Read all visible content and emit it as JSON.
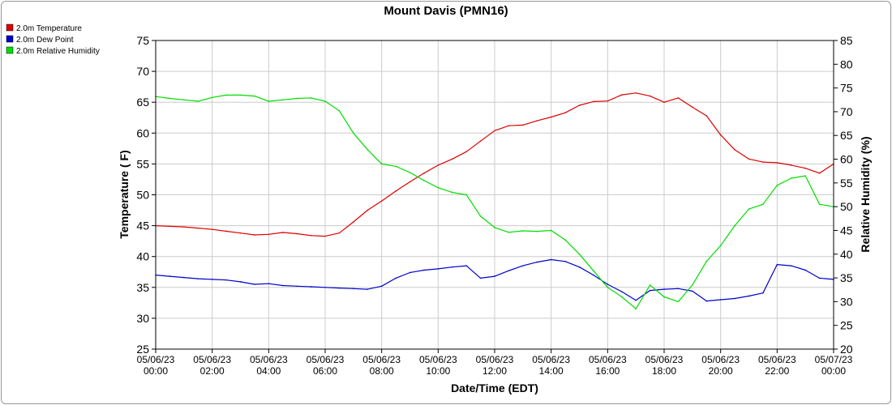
{
  "chart_data": {
    "type": "line",
    "title": "Mount Davis (PMN16)",
    "xlabel": "Date/Time (EDT)",
    "ylabel": "Temperature ( F)",
    "y2label": "Relative Humidity (%)",
    "xlim": [
      0,
      24
    ],
    "ylim": [
      25,
      75
    ],
    "y2lim": [
      20,
      85
    ],
    "yticks": [
      "25",
      "30",
      "35",
      "40",
      "45",
      "50",
      "55",
      "60",
      "65",
      "70",
      "75"
    ],
    "y2ticks": [
      "20",
      "25",
      "30",
      "35",
      "40",
      "45",
      "50",
      "55",
      "60",
      "65",
      "70",
      "75",
      "80",
      "85"
    ],
    "xticks": [
      {
        "date": "05/06/23",
        "time": "00:00"
      },
      {
        "date": "05/06/23",
        "time": "02:00"
      },
      {
        "date": "05/06/23",
        "time": "04:00"
      },
      {
        "date": "05/06/23",
        "time": "06:00"
      },
      {
        "date": "05/06/23",
        "time": "08:00"
      },
      {
        "date": "05/06/23",
        "time": "10:00"
      },
      {
        "date": "05/06/23",
        "time": "12:00"
      },
      {
        "date": "05/06/23",
        "time": "14:00"
      },
      {
        "date": "05/06/23",
        "time": "16:00"
      },
      {
        "date": "05/06/23",
        "time": "18:00"
      },
      {
        "date": "05/06/23",
        "time": "20:00"
      },
      {
        "date": "05/06/23",
        "time": "22:00"
      },
      {
        "date": "05/07/23",
        "time": "00:00"
      }
    ],
    "grid": true,
    "legend_position": "top-left",
    "series": [
      {
        "name": "2.0m Temperature",
        "color": "#dd0000",
        "axis": "left",
        "x": [
          0,
          0.5,
          1,
          1.5,
          2,
          2.5,
          3,
          3.5,
          4,
          4.5,
          5,
          5.5,
          6,
          6.5,
          7,
          7.5,
          8,
          8.5,
          9,
          9.5,
          10,
          10.5,
          11,
          11.5,
          12,
          12.5,
          13,
          13.5,
          14,
          14.5,
          15,
          15.5,
          16,
          16.5,
          17,
          17.5,
          18,
          18.5,
          19,
          19.5,
          20,
          20.5,
          21,
          21.5,
          22,
          22.5,
          23,
          23.5,
          24
        ],
        "values": [
          45.0,
          44.9,
          44.8,
          44.6,
          44.4,
          44.1,
          43.8,
          43.5,
          43.6,
          43.9,
          43.7,
          43.4,
          43.3,
          43.8,
          45.6,
          47.5,
          49.0,
          50.6,
          52.1,
          53.5,
          54.8,
          55.8,
          57.0,
          58.7,
          60.4,
          61.2,
          61.3,
          62.0,
          62.6,
          63.3,
          64.5,
          65.1,
          65.2,
          66.2,
          66.5,
          66.0,
          65.0,
          65.7,
          64.2,
          62.8,
          59.7,
          57.3,
          55.8,
          55.3,
          55.2,
          54.8,
          54.3,
          53.5,
          55.0
        ]
      },
      {
        "name": "2.0m Dew Point",
        "color": "#0000cc",
        "axis": "left",
        "x": [
          0,
          0.5,
          1,
          1.5,
          2,
          2.5,
          3,
          3.5,
          4,
          4.5,
          5,
          5.5,
          6,
          6.5,
          7,
          7.5,
          8,
          8.5,
          9,
          9.5,
          10,
          10.5,
          11,
          11.5,
          12,
          12.5,
          13,
          13.5,
          14,
          14.5,
          15,
          15.5,
          16,
          16.5,
          17,
          17.5,
          18,
          18.5,
          19,
          19.5,
          20,
          20.5,
          21,
          21.5,
          22,
          22.5,
          23,
          23.5,
          24
        ],
        "values": [
          37.0,
          36.8,
          36.6,
          36.4,
          36.3,
          36.2,
          35.9,
          35.5,
          35.6,
          35.3,
          35.2,
          35.1,
          35.0,
          34.9,
          34.8,
          34.7,
          35.2,
          36.5,
          37.4,
          37.8,
          38.0,
          38.3,
          38.5,
          36.5,
          36.8,
          37.7,
          38.5,
          39.1,
          39.5,
          39.2,
          38.3,
          37.0,
          35.5,
          34.3,
          32.9,
          34.5,
          34.7,
          34.8,
          34.4,
          32.8,
          33.0,
          33.2,
          33.6,
          34.1,
          38.7,
          38.5,
          37.8,
          36.5,
          36.3
        ]
      },
      {
        "name": "2.0m Relative Humidity",
        "color": "#00dd00",
        "axis": "right",
        "x": [
          0,
          0.5,
          1,
          1.5,
          2,
          2.5,
          3,
          3.5,
          4,
          4.5,
          5,
          5.5,
          6,
          6.5,
          7,
          7.5,
          8,
          8.5,
          9,
          9.5,
          10,
          10.5,
          11,
          11.5,
          12,
          12.5,
          13,
          13.5,
          14,
          14.5,
          15,
          15.5,
          16,
          16.5,
          17,
          17.5,
          18,
          18.5,
          19,
          19.5,
          20,
          20.5,
          21,
          21.5,
          22,
          22.5,
          23,
          23.5,
          24
        ],
        "values": [
          73.2,
          72.8,
          72.5,
          72.2,
          73.0,
          73.5,
          73.5,
          73.3,
          72.2,
          72.5,
          72.8,
          72.9,
          72.2,
          70.2,
          65.5,
          62.0,
          59.0,
          58.5,
          57.2,
          55.5,
          54.0,
          53.0,
          52.5,
          48.0,
          45.6,
          44.6,
          44.9,
          44.8,
          45.0,
          43.0,
          40.0,
          36.5,
          33.0,
          31.0,
          28.5,
          33.5,
          31.0,
          30.0,
          33.5,
          38.5,
          41.8,
          46.0,
          49.5,
          50.5,
          54.5,
          56.0,
          56.5,
          50.5,
          50.0
        ]
      }
    ]
  }
}
